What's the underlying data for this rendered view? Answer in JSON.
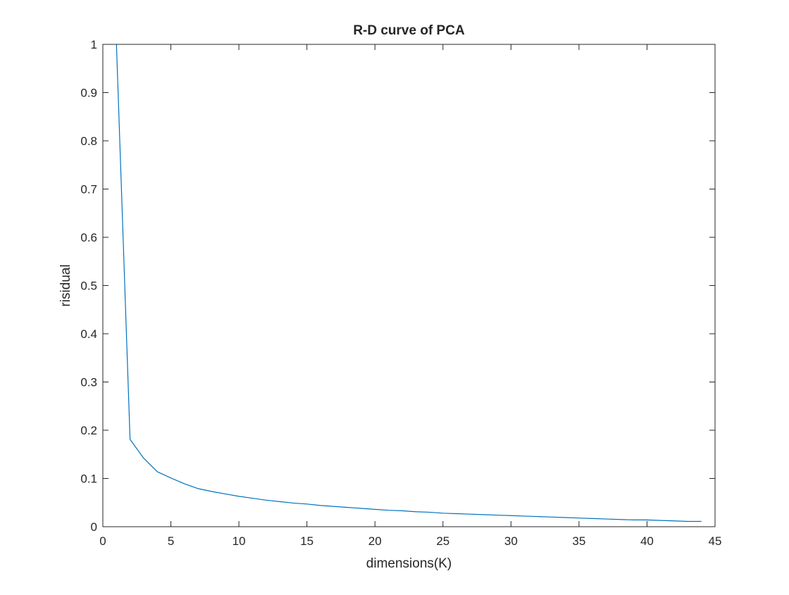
{
  "figure": {
    "background": "#ffffff",
    "axes_color": "#262626",
    "line_color": "#0072bd"
  },
  "chart_data": {
    "type": "line",
    "title": "R-D curve of PCA",
    "xlabel": "dimensions(K)",
    "ylabel": "risidual",
    "xlim": [
      0,
      45
    ],
    "ylim": [
      0,
      1
    ],
    "xticks": [
      0,
      5,
      10,
      15,
      20,
      25,
      30,
      35,
      40,
      45
    ],
    "yticks": [
      0,
      0.1,
      0.2,
      0.3,
      0.4,
      0.5,
      0.6,
      0.7,
      0.8,
      0.9,
      1
    ],
    "xtick_labels": [
      "0",
      "5",
      "10",
      "15",
      "20",
      "25",
      "30",
      "35",
      "40",
      "45"
    ],
    "ytick_labels": [
      "0",
      "0.1",
      "0.2",
      "0.3",
      "0.4",
      "0.5",
      "0.6",
      "0.7",
      "0.8",
      "0.9",
      "1"
    ],
    "grid": false,
    "box": true,
    "series": [
      {
        "x": [
          1,
          2,
          3,
          4,
          5,
          6,
          7,
          8,
          9,
          10,
          11,
          12,
          13,
          14,
          15,
          16,
          17,
          18,
          19,
          20,
          21,
          22,
          23,
          24,
          25,
          26,
          27,
          28,
          29,
          30,
          31,
          32,
          33,
          34,
          35,
          36,
          37,
          38,
          39,
          40,
          41,
          42,
          43,
          44
        ],
        "y": [
          1.0,
          0.181,
          0.142,
          0.114,
          0.101,
          0.089,
          0.079,
          0.073,
          0.068,
          0.063,
          0.059,
          0.055,
          0.052,
          0.049,
          0.047,
          0.044,
          0.042,
          0.04,
          0.038,
          0.036,
          0.034,
          0.033,
          0.031,
          0.03,
          0.028,
          0.027,
          0.026,
          0.025,
          0.024,
          0.023,
          0.022,
          0.021,
          0.02,
          0.019,
          0.018,
          0.017,
          0.016,
          0.015,
          0.014,
          0.014,
          0.013,
          0.012,
          0.011,
          0.011
        ]
      }
    ]
  }
}
